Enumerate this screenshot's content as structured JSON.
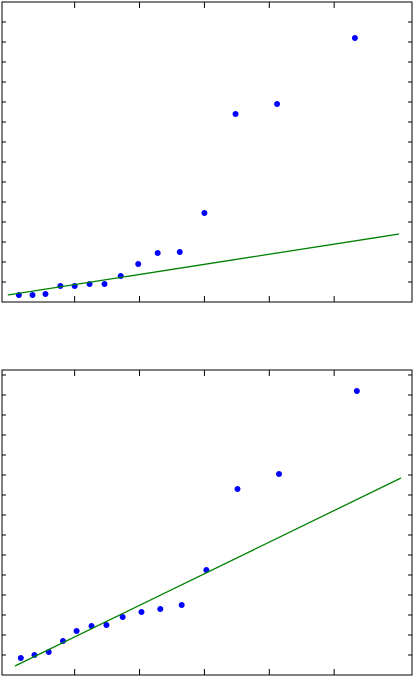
{
  "chart_data": [
    {
      "type": "scatter",
      "xlim": [
        -0.12,
        6.2
      ],
      "ylim": [
        0,
        15
      ],
      "xticks": [
        1,
        2,
        3,
        4,
        5
      ],
      "yticks": [
        1,
        2,
        3,
        4,
        5,
        6,
        7,
        8,
        9,
        10,
        11,
        12,
        13,
        14
      ],
      "grid": false,
      "series": [
        {
          "kind": "points",
          "color": "#0000ff",
          "x": [
            0.14,
            0.35,
            0.55,
            0.78,
            1.0,
            1.23,
            1.46,
            1.71,
            1.98,
            2.28,
            2.62,
            3.0,
            3.48,
            4.12,
            5.32
          ],
          "values": [
            0.35,
            0.35,
            0.4,
            0.8,
            0.8,
            0.9,
            0.9,
            1.3,
            1.9,
            2.45,
            2.5,
            4.45,
            9.4,
            9.9,
            13.2
          ]
        },
        {
          "kind": "line",
          "color": "#008000",
          "x": [
            -0.03,
            6.0
          ],
          "values": [
            0.35,
            3.4
          ]
        }
      ]
    },
    {
      "type": "scatter",
      "xlim": [
        -0.12,
        6.2
      ],
      "ylim": [
        0,
        15.25
      ],
      "xticks": [
        1,
        2,
        3,
        4,
        5
      ],
      "yticks": [
        1,
        2,
        3,
        4,
        5,
        6,
        7,
        8,
        9,
        10,
        11,
        12,
        13,
        14,
        15
      ],
      "grid": false,
      "series": [
        {
          "kind": "points",
          "color": "#0000ff",
          "x": [
            0.17,
            0.38,
            0.6,
            0.82,
            1.03,
            1.26,
            1.49,
            1.74,
            2.03,
            2.32,
            2.65,
            3.03,
            3.51,
            4.15,
            5.35
          ],
          "values": [
            0.85,
            1.0,
            1.15,
            1.7,
            2.2,
            2.45,
            2.5,
            2.9,
            3.15,
            3.3,
            3.5,
            5.25,
            9.3,
            10.05,
            14.2
          ]
        },
        {
          "kind": "line",
          "color": "#008000",
          "x": [
            0.08,
            6.03
          ],
          "values": [
            0.45,
            9.85
          ]
        }
      ]
    }
  ]
}
